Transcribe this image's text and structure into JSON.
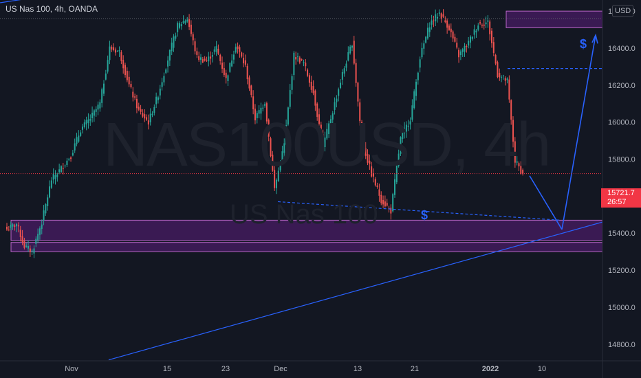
{
  "header": {
    "title": "US Nas 100, 4h, OANDA",
    "currency": "USD"
  },
  "watermark": {
    "main": "NAS100USD, 4h",
    "sub": "US Nas 100"
  },
  "price_badge": {
    "price": "15721.7",
    "countdown": "26:57"
  },
  "colors": {
    "background": "#131722",
    "up": "#26a69a",
    "down": "#ef5350",
    "zone": "#7b1fa2",
    "trendline": "#2962ff",
    "price_line": "#f23645",
    "axis_text": "#b2b5be"
  },
  "chart_data": {
    "type": "candlestick",
    "symbol": "US Nas 100",
    "timeframe": "4h",
    "source": "OANDA",
    "ylim": [
      14710,
      16660
    ],
    "y_ticks": [
      "14800.0",
      "15000.0",
      "15200.0",
      "15400.0",
      "15600.0",
      "15800.0",
      "16000.0",
      "16200.0",
      "16400.0",
      "16600.0",
      "16800.0"
    ],
    "x_ticks": [
      "Nov",
      "15",
      "23",
      "Dec",
      "13",
      "21",
      "2022",
      "10"
    ],
    "last_price": 15721.7,
    "close_path": [
      [
        0,
        15420
      ],
      [
        5,
        15450
      ],
      [
        9,
        15330
      ],
      [
        13,
        15300
      ],
      [
        18,
        15460
      ],
      [
        23,
        15690
      ],
      [
        28,
        15750
      ],
      [
        33,
        15820
      ],
      [
        38,
        15960
      ],
      [
        43,
        16020
      ],
      [
        48,
        16100
      ],
      [
        53,
        16400
      ],
      [
        58,
        16380
      ],
      [
        63,
        16200
      ],
      [
        68,
        16060
      ],
      [
        73,
        16000
      ],
      [
        78,
        16150
      ],
      [
        83,
        16340
      ],
      [
        88,
        16520
      ],
      [
        93,
        16560
      ],
      [
        98,
        16350
      ],
      [
        103,
        16330
      ],
      [
        108,
        16400
      ],
      [
        113,
        16230
      ],
      [
        118,
        16420
      ],
      [
        123,
        16300
      ],
      [
        128,
        16020
      ],
      [
        133,
        16110
      ],
      [
        138,
        15640
      ],
      [
        143,
        15880
      ],
      [
        148,
        16360
      ],
      [
        153,
        16320
      ],
      [
        158,
        16160
      ],
      [
        163,
        15870
      ],
      [
        168,
        16060
      ],
      [
        173,
        16260
      ],
      [
        178,
        16430
      ],
      [
        183,
        15900
      ],
      [
        188,
        15720
      ],
      [
        193,
        15580
      ],
      [
        198,
        15520
      ],
      [
        203,
        15910
      ],
      [
        208,
        16020
      ],
      [
        213,
        16350
      ],
      [
        218,
        16530
      ],
      [
        223,
        16590
      ],
      [
        228,
        16510
      ],
      [
        233,
        16360
      ],
      [
        238,
        16430
      ],
      [
        243,
        16530
      ],
      [
        248,
        16540
      ],
      [
        253,
        16260
      ],
      [
        258,
        16220
      ],
      [
        262,
        15790
      ],
      [
        266,
        15722
      ]
    ],
    "zones": [
      {
        "from": 15470,
        "to": 15360
      },
      {
        "from": 15350,
        "to": 15300
      },
      {
        "from": 16600,
        "to": 16510
      }
    ],
    "annotations": [
      "$",
      "$"
    ]
  }
}
